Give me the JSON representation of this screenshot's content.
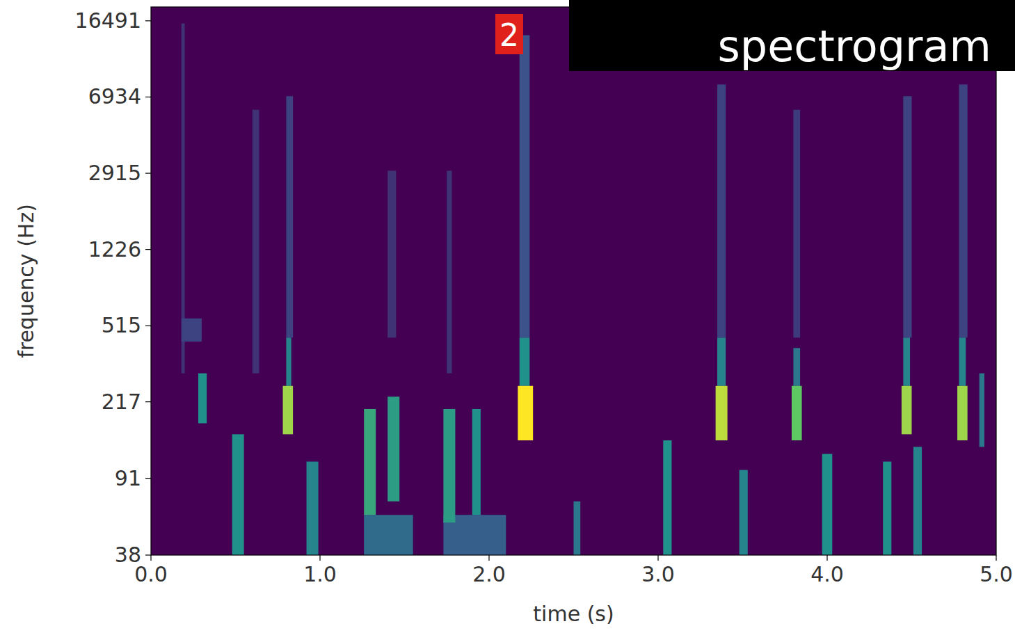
{
  "chart_data": {
    "type": "heatmap",
    "title": "spectrogram",
    "annotations": [
      "2"
    ],
    "x_label": "time (s)",
    "y_label": "frequency (Hz)",
    "log": "y",
    "xlim": [
      0,
      5
    ],
    "ylim": [
      38,
      19300
    ],
    "xticks": [
      {
        "value": 0,
        "label": "0.0"
      },
      {
        "value": 1,
        "label": "1.0"
      },
      {
        "value": 2,
        "label": "2.0"
      },
      {
        "value": 3,
        "label": "3.0"
      },
      {
        "value": 4,
        "label": "4.0"
      },
      {
        "value": 5,
        "label": "5.0"
      }
    ],
    "yticks": [
      38,
      91,
      217,
      515,
      1226,
      2915,
      6934,
      16491
    ],
    "cells": [
      [
        0.18,
        0.2,
        300,
        16000,
        0.15
      ],
      [
        0.6,
        0.64,
        300,
        6000,
        0.15
      ],
      [
        1.4,
        1.45,
        450,
        3000,
        0.15
      ],
      [
        1.75,
        1.78,
        300,
        3000,
        0.15
      ],
      [
        0.18,
        0.3,
        430,
        560,
        0.2
      ],
      [
        0.8,
        0.84,
        450,
        7000,
        0.2
      ],
      [
        2.18,
        2.24,
        450,
        14000,
        0.25
      ],
      [
        3.35,
        3.4,
        450,
        8000,
        0.2
      ],
      [
        3.8,
        3.84,
        450,
        6000,
        0.18
      ],
      [
        4.45,
        4.5,
        450,
        7000,
        0.2
      ],
      [
        4.78,
        4.83,
        450,
        8000,
        0.2
      ],
      [
        0.8,
        0.83,
        260,
        450,
        0.45
      ],
      [
        2.18,
        2.24,
        260,
        450,
        0.5
      ],
      [
        3.35,
        3.4,
        260,
        450,
        0.45
      ],
      [
        3.8,
        3.84,
        260,
        400,
        0.4
      ],
      [
        4.45,
        4.49,
        260,
        450,
        0.45
      ],
      [
        4.78,
        4.82,
        260,
        450,
        0.45
      ],
      [
        0.48,
        0.55,
        38,
        150,
        0.5
      ],
      [
        0.92,
        0.99,
        38,
        110,
        0.45
      ],
      [
        1.26,
        1.55,
        38,
        60,
        0.35
      ],
      [
        1.26,
        1.33,
        60,
        200,
        0.6
      ],
      [
        1.4,
        1.47,
        70,
        230,
        0.55
      ],
      [
        1.73,
        2.1,
        38,
        60,
        0.3
      ],
      [
        1.73,
        1.8,
        55,
        200,
        0.55
      ],
      [
        1.9,
        1.95,
        60,
        200,
        0.5
      ],
      [
        2.5,
        2.54,
        38,
        70,
        0.4
      ],
      [
        3.03,
        3.08,
        38,
        140,
        0.5
      ],
      [
        3.48,
        3.53,
        38,
        100,
        0.45
      ],
      [
        3.97,
        4.03,
        38,
        120,
        0.5
      ],
      [
        4.33,
        4.38,
        38,
        110,
        0.5
      ],
      [
        4.51,
        4.56,
        38,
        130,
        0.45
      ],
      [
        0.28,
        0.33,
        170,
        300,
        0.5
      ],
      [
        4.9,
        4.93,
        130,
        300,
        0.4
      ],
      [
        0.78,
        0.84,
        150,
        260,
        0.85
      ],
      [
        2.17,
        2.26,
        140,
        260,
        1.0
      ],
      [
        3.34,
        3.41,
        140,
        260,
        0.9
      ],
      [
        3.79,
        3.85,
        140,
        260,
        0.75
      ],
      [
        4.44,
        4.5,
        150,
        260,
        0.85
      ],
      [
        4.77,
        4.83,
        140,
        260,
        0.85
      ]
    ]
  }
}
